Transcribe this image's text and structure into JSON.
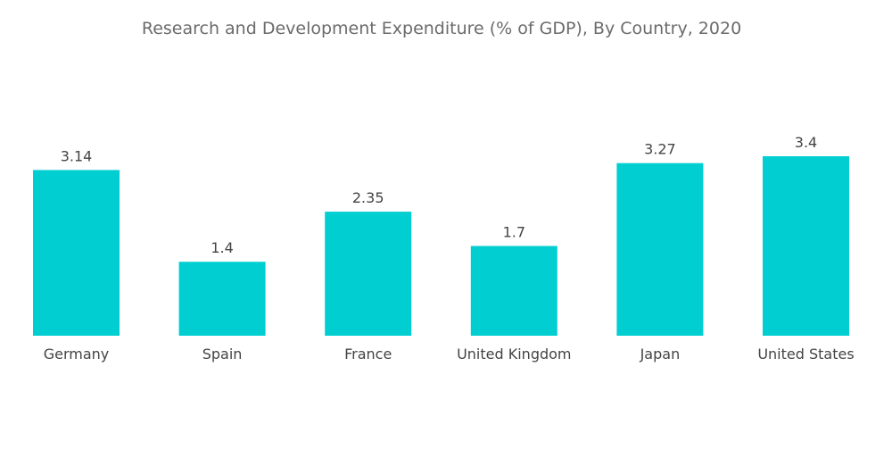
{
  "chart_data": {
    "type": "bar",
    "title": "Research and Development Expenditure (% of GDP), By Country, 2020",
    "xlabel": "",
    "ylabel": "",
    "categories": [
      "Germany",
      "Spain",
      "France",
      "United Kingdom",
      "Japan",
      "United States"
    ],
    "values": [
      3.14,
      1.4,
      2.35,
      1.7,
      3.27,
      3.4
    ],
    "value_labels": [
      "3.14",
      "1.4",
      "2.35",
      "1.7",
      "3.27",
      "3.4"
    ],
    "ylim": [
      0,
      3.4
    ],
    "grid": false,
    "legend": "none",
    "bar_color": "#00CED1"
  }
}
